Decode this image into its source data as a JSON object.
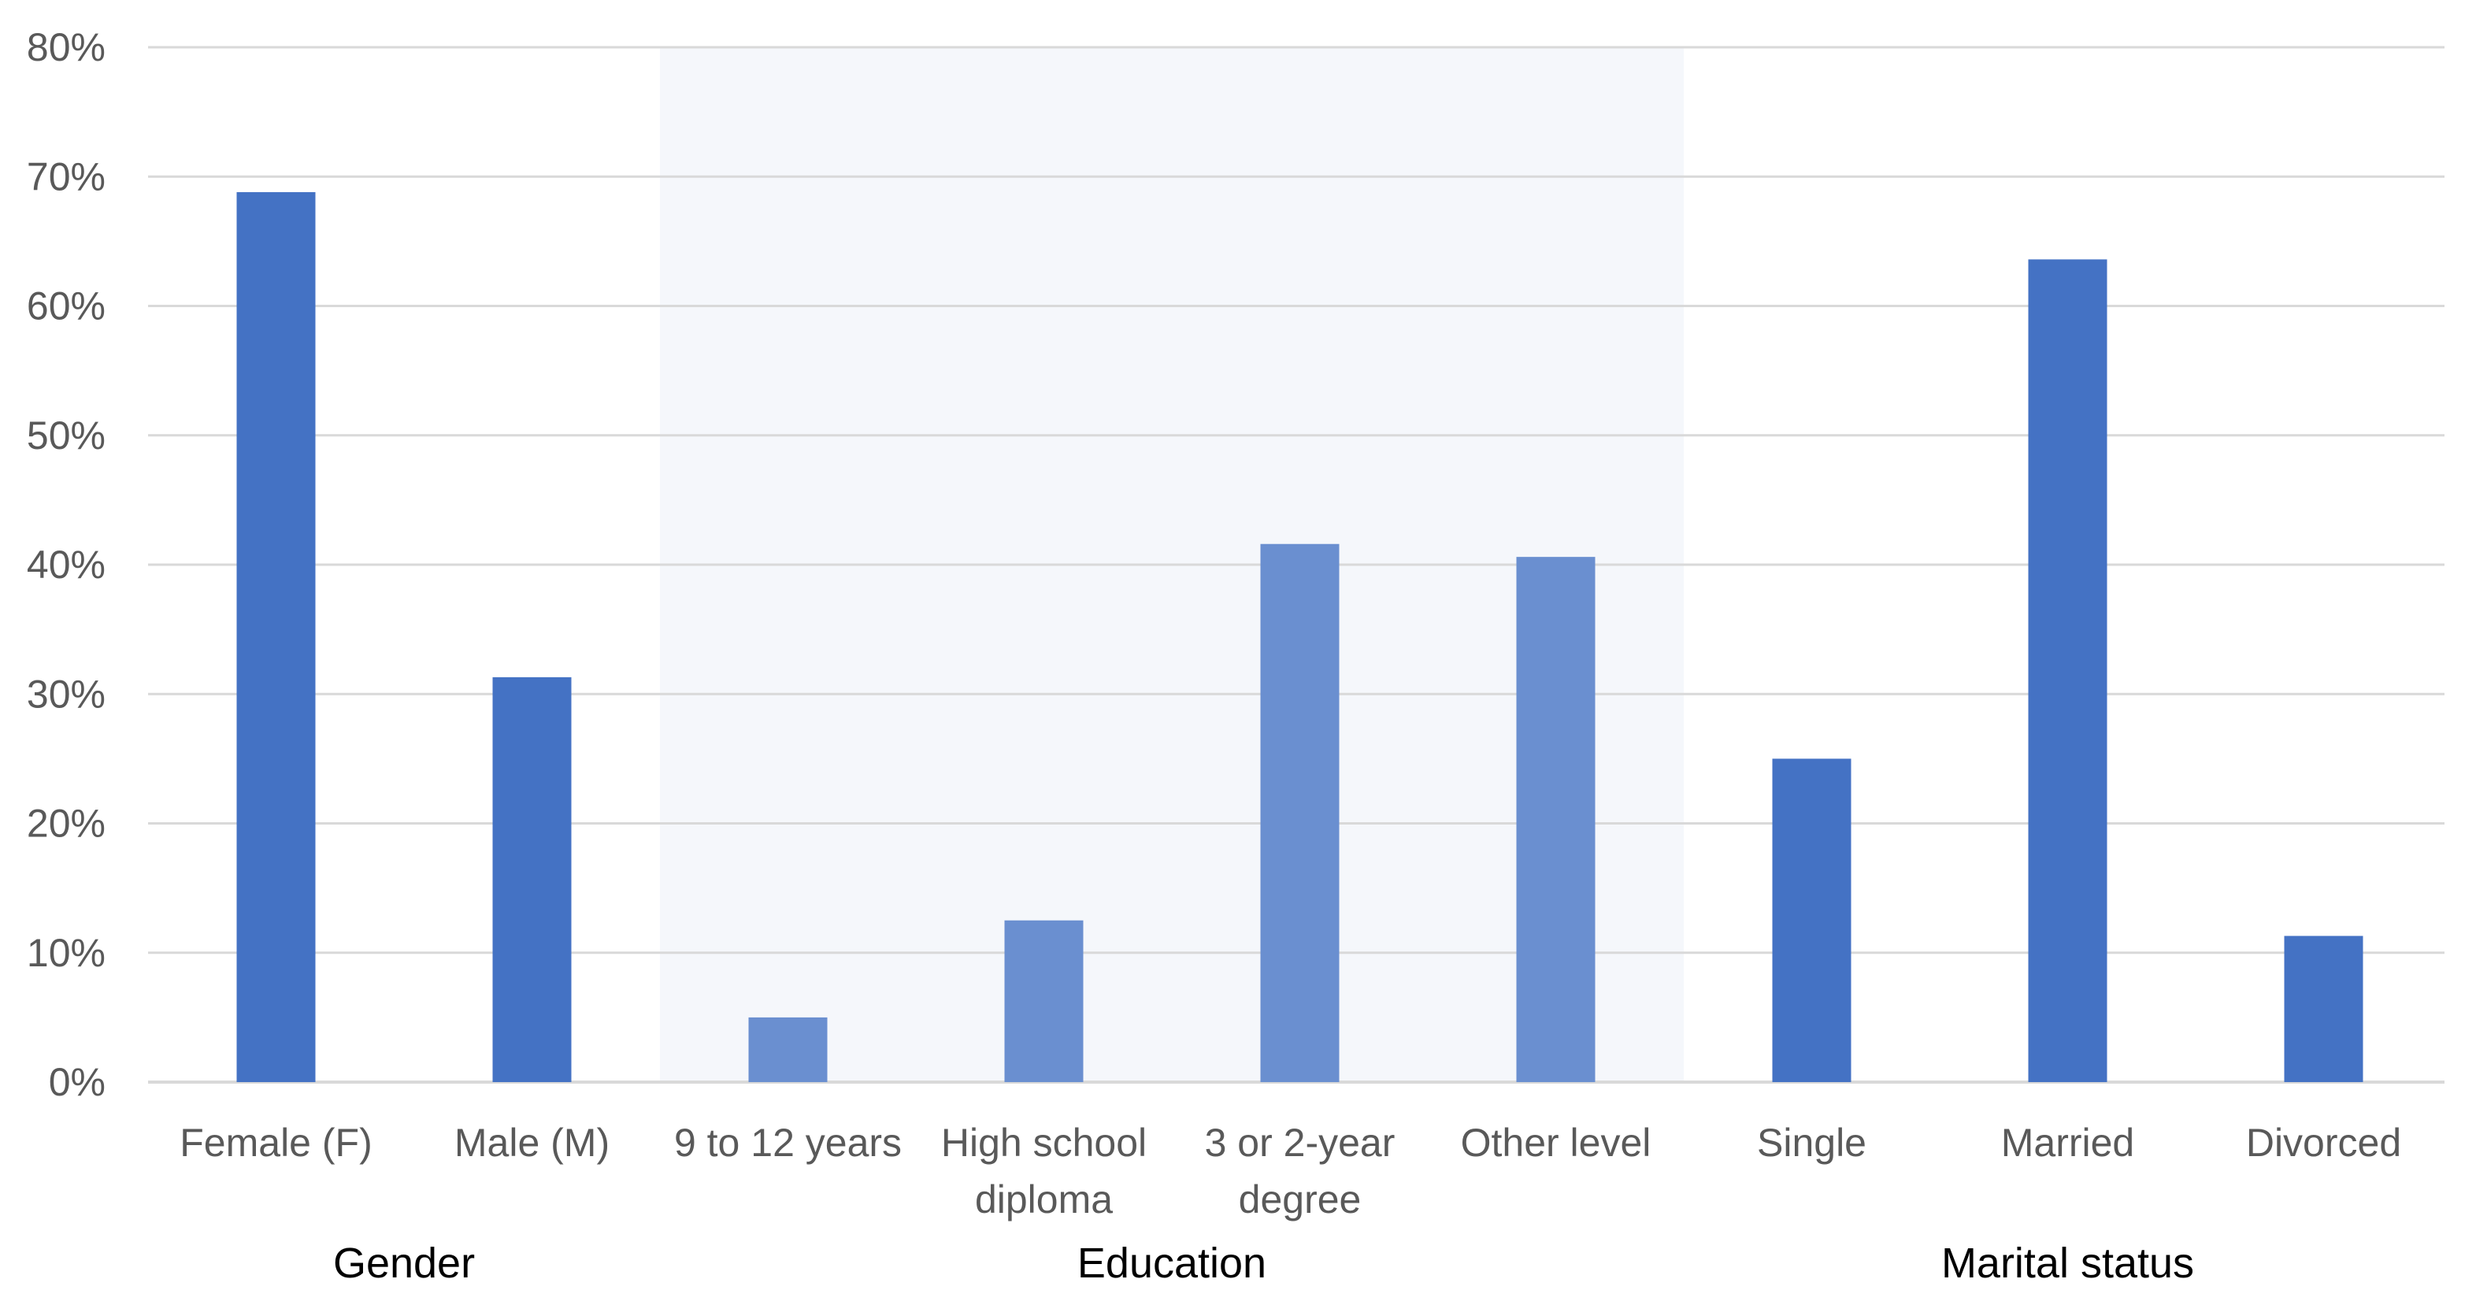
{
  "chart_data": {
    "type": "bar",
    "categories": [
      "Female (F)",
      "Male (M)",
      "9 to 12 years",
      "High school diploma",
      "3 or 2-year degree",
      "Other level",
      "Single",
      "Married",
      "Divorced"
    ],
    "category_label_lines": [
      [
        "Female (F)"
      ],
      [
        "Male (M)"
      ],
      [
        "9 to 12 years"
      ],
      [
        "High school",
        "diploma"
      ],
      [
        "3 or 2-year",
        "degree"
      ],
      [
        "Other level"
      ],
      [
        "Single"
      ],
      [
        "Married"
      ],
      [
        "Divorced"
      ]
    ],
    "values": [
      68.8,
      31.3,
      5.0,
      12.5,
      41.6,
      40.6,
      25.0,
      63.6,
      11.3
    ],
    "groups": [
      {
        "name": "Gender",
        "categories": [
          "Female (F)",
          "Male (M)"
        ],
        "highlighted": false
      },
      {
        "name": "Education",
        "categories": [
          "9 to 12 years",
          "High school diploma",
          "3 or 2-year degree",
          "Other level"
        ],
        "highlighted": true
      },
      {
        "name": "Marital status",
        "categories": [
          "Single",
          "Married",
          "Divorced"
        ],
        "highlighted": false
      }
    ],
    "title": "",
    "xlabel": "",
    "ylabel": "",
    "ylim": [
      0,
      80
    ],
    "yticks": [
      0,
      10,
      20,
      30,
      40,
      50,
      60,
      70,
      80
    ],
    "ytick_labels": [
      "0%",
      "10%",
      "20%",
      "30%",
      "40%",
      "50%",
      "60%",
      "70%",
      "80%"
    ],
    "grid": true,
    "legend": "none",
    "colors": {
      "bar": "#4472C4",
      "bar_highlight": "#6A8FD0",
      "band": "#F5F7FB",
      "grid": "#D9D9D9",
      "tick_text": "#595959",
      "group_text": "#000000"
    }
  }
}
